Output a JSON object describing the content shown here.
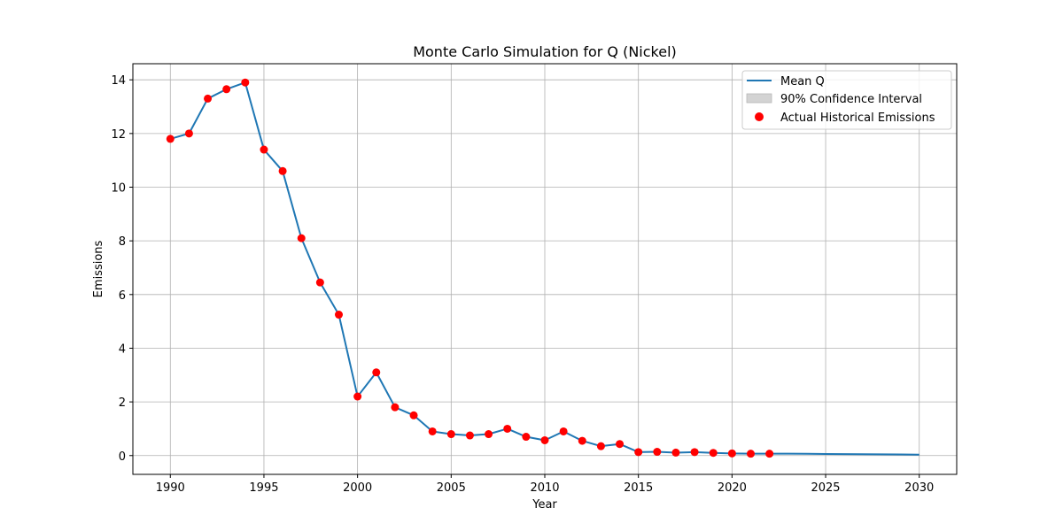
{
  "chart_data": {
    "type": "line",
    "title": "Monte Carlo Simulation for Q (Nickel)",
    "xlabel": "Year",
    "ylabel": "Emissions",
    "xlim": [
      1988,
      2032
    ],
    "ylim": [
      -0.7,
      14.6
    ],
    "xticks": [
      1990,
      1995,
      2000,
      2005,
      2010,
      2015,
      2020,
      2025,
      2030
    ],
    "yticks": [
      0,
      2,
      4,
      6,
      8,
      10,
      12,
      14
    ],
    "grid": true,
    "legend_position": "top-right",
    "legend": [
      {
        "label": "Mean Q",
        "kind": "line",
        "color": "#1f77b4"
      },
      {
        "label": "90% Confidence Interval",
        "kind": "patch",
        "color": "#d3d3d3"
      },
      {
        "label": "Actual Historical Emissions",
        "kind": "marker",
        "color": "#ff0000"
      }
    ],
    "series": [
      {
        "name": "Mean Q",
        "kind": "line",
        "color": "#1f77b4",
        "x": [
          1990,
          1991,
          1992,
          1993,
          1994,
          1995,
          1996,
          1997,
          1998,
          1999,
          2000,
          2001,
          2002,
          2003,
          2004,
          2005,
          2006,
          2007,
          2008,
          2009,
          2010,
          2011,
          2012,
          2013,
          2014,
          2015,
          2016,
          2017,
          2018,
          2019,
          2020,
          2021,
          2022,
          2023,
          2024,
          2025,
          2026,
          2027,
          2028,
          2029,
          2030
        ],
        "y": [
          11.8,
          12.0,
          13.3,
          13.65,
          13.9,
          11.4,
          10.6,
          8.1,
          6.45,
          5.25,
          2.2,
          3.1,
          1.8,
          1.5,
          0.9,
          0.8,
          0.75,
          0.8,
          1.0,
          0.7,
          0.57,
          0.9,
          0.55,
          0.35,
          0.43,
          0.13,
          0.14,
          0.11,
          0.13,
          0.1,
          0.08,
          0.07,
          0.07,
          0.07,
          0.065,
          0.06,
          0.055,
          0.05,
          0.045,
          0.04,
          0.035
        ]
      },
      {
        "name": "Actual Historical Emissions",
        "kind": "scatter",
        "color": "#ff0000",
        "x": [
          1990,
          1991,
          1992,
          1993,
          1994,
          1995,
          1996,
          1997,
          1998,
          1999,
          2000,
          2001,
          2002,
          2003,
          2004,
          2005,
          2006,
          2007,
          2008,
          2009,
          2010,
          2011,
          2012,
          2013,
          2014,
          2015,
          2016,
          2017,
          2018,
          2019,
          2020,
          2021,
          2022
        ],
        "y": [
          11.8,
          12.0,
          13.3,
          13.65,
          13.9,
          11.4,
          10.6,
          8.1,
          6.45,
          5.25,
          2.2,
          3.1,
          1.8,
          1.5,
          0.9,
          0.8,
          0.75,
          0.8,
          1.0,
          0.7,
          0.57,
          0.9,
          0.55,
          0.35,
          0.43,
          0.13,
          0.14,
          0.11,
          0.13,
          0.1,
          0.08,
          0.07,
          0.07
        ]
      }
    ]
  }
}
